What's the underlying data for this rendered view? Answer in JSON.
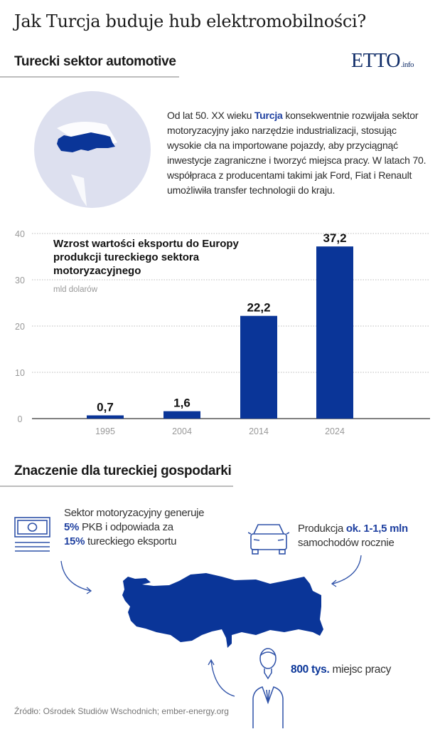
{
  "title": "Jak Turcja buduje hub elektromobilności?",
  "logo": {
    "main": "ETTO",
    "suffix": ".info"
  },
  "section1": {
    "heading": "Turecki sektor automotive",
    "paragraph_before": "Od lat 50. XX wieku ",
    "paragraph_highlight": "Turcja",
    "paragraph_after": " konsekwentnie rozwijała sektor motoryzacyjny jako narzędzie industrializacji, stosując wysokie cła na importowane pojazdy, aby przyciągnąć inwestycje zagraniczne i tworzyć miejsca pracy. W latach 70. współpraca z producentami takimi jak Ford, Fiat i Renault umożliwiła transfer technologii do kraju."
  },
  "chart_data": {
    "type": "bar",
    "title": "Wzrost wartości eksportu do Europy produkcji tureckiego sektora motoryzacyjnego",
    "title_lines": [
      "Wzrost wartości eksportu do Europy",
      "produkcji tureckiego sektora",
      "motoryzacyjnego"
    ],
    "ylabel": "mld dolarów",
    "xlabel": "",
    "categories": [
      "1995",
      "2004",
      "2014",
      "2024"
    ],
    "values": [
      0.7,
      1.6,
      22.2,
      37.2
    ],
    "data_labels": [
      "0,7",
      "1,6",
      "22,2",
      "37,2"
    ],
    "ylim": [
      0,
      40
    ],
    "yticks": [
      0,
      10,
      20,
      30,
      40
    ],
    "grid": true,
    "bar_color": "#0a3598"
  },
  "section2": {
    "heading": "Znaczenie dla tureckiej gospodarki",
    "gdp": {
      "line1": "Sektor motoryzacyjny generuje",
      "hl1": "5%",
      "line2": " PKB i odpowiada za",
      "hl2": "15%",
      "line3": " tureckiego eksportu"
    },
    "production": {
      "text1": "Produkcja ",
      "hl": "ok. 1-1,5 mln",
      "line2": "samochodów rocznie"
    },
    "jobs": {
      "hl": "800 tys.",
      "text": " miejsc pracy"
    }
  },
  "source": "Źródło: Ośrodek Studiów Wschodnich; ember-energy.org",
  "colors": {
    "accent": "#1f40a0",
    "bar": "#0a3598",
    "globe": "#dde0ef"
  }
}
